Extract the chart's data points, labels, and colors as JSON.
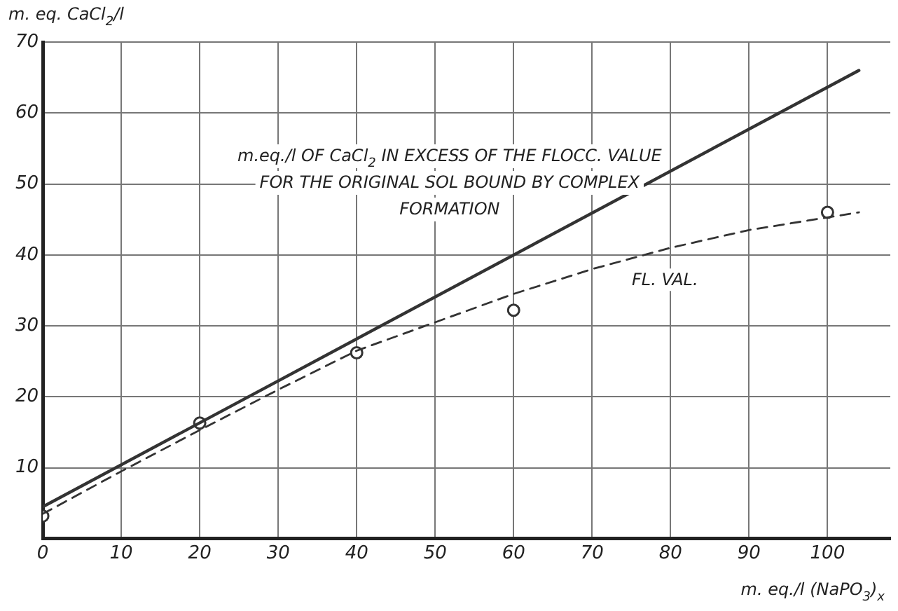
{
  "chart_data": {
    "type": "line",
    "xlabel": "m. eq./l (NaPO$_{3}$)$_{x}$",
    "ylabel": "m. eq. CaCl$_{2}$/l",
    "xlim": [
      0,
      108
    ],
    "xticks": [
      0,
      10,
      20,
      30,
      40,
      50,
      60,
      70,
      80,
      90,
      100
    ],
    "ylim": [
      0,
      70
    ],
    "yticks": [
      10,
      20,
      30,
      40,
      50,
      60,
      70
    ],
    "grid": true,
    "legend": false,
    "series": [
      {
        "type": "line",
        "color": "#333333",
        "line_style": "solid",
        "marker": "none",
        "x": [
          0,
          104
        ],
        "values": [
          4.5,
          66
        ]
      },
      {
        "type": "line",
        "color": "#333333",
        "line_style": "dashed",
        "marker": "none",
        "x": [
          0,
          10,
          20,
          30,
          40,
          50,
          60,
          70,
          80,
          90,
          104
        ],
        "values": [
          3.5,
          9.5,
          15.3,
          21,
          26.5,
          30.5,
          34.5,
          38,
          41,
          43.5,
          46
        ]
      },
      {
        "type": "scatter",
        "color": "#333333",
        "marker": "circle",
        "x": [
          0,
          20,
          40,
          60,
          100
        ],
        "values": [
          3.2,
          16.3,
          26.2,
          32.2,
          46
        ]
      }
    ],
    "annotations": [
      "m.eq./l OF CaCl$_{2}$ IN EXCESS OF THE FLOCC. VALUE FOR THE ORIGINAL SOL BOUND BY COMPLEX FORMATION",
      "FL. VAL."
    ]
  }
}
